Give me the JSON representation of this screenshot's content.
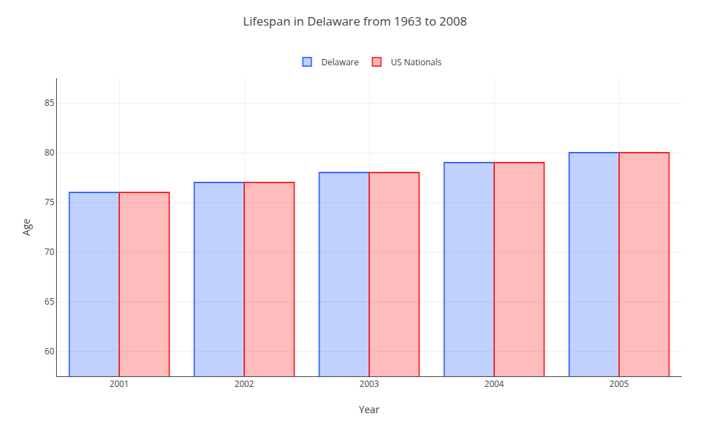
{
  "chart_data": {
    "type": "bar",
    "title": "Lifespan in Delaware from 1963 to 2008",
    "xlabel": "Year",
    "ylabel": "Age",
    "categories": [
      "2001",
      "2002",
      "2003",
      "2004",
      "2005"
    ],
    "series": [
      {
        "name": "Delaware",
        "color": "#3366FF",
        "values": [
          76.0,
          77.0,
          78.0,
          79.0,
          80.0
        ]
      },
      {
        "name": "US Nationals",
        "color": "#FF2222",
        "values": [
          76.0,
          77.0,
          78.0,
          79.0,
          80.0
        ]
      }
    ],
    "ylim": [
      57.5,
      87.5
    ],
    "yticks": [
      60,
      65,
      70,
      75,
      80,
      85
    ],
    "grid": true,
    "legend": "top"
  }
}
